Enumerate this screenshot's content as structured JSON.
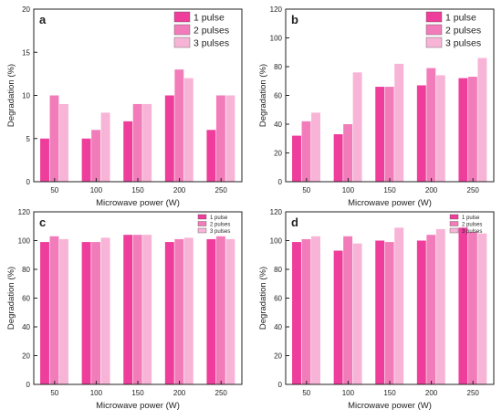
{
  "colors": {
    "pulse1": "#ee3d9b",
    "pulse2": "#f27cba",
    "pulse3": "#f7b4d6",
    "axis": "#222222"
  },
  "chart_data": [
    {
      "type": "bar",
      "panel_label": "a",
      "xlabel": "Microwave power (W)",
      "ylabel": "Degradation (%)",
      "ylim": [
        0,
        20
      ],
      "yticks": [
        0,
        5,
        10,
        15,
        20
      ],
      "categories": [
        "50",
        "100",
        "150",
        "200",
        "250"
      ],
      "legend_position": "top-right",
      "series": [
        {
          "name": "1 pulse",
          "values": [
            5,
            5,
            7,
            10,
            6
          ]
        },
        {
          "name": "2 pulses",
          "values": [
            10,
            6,
            9,
            13,
            10
          ]
        },
        {
          "name": "3 pulses",
          "values": [
            9,
            8,
            9,
            12,
            10
          ]
        }
      ]
    },
    {
      "type": "bar",
      "panel_label": "b",
      "xlabel": "Microwave power (W)",
      "ylabel": "Degradation (%)",
      "ylim": [
        0,
        120
      ],
      "yticks": [
        0,
        20,
        40,
        60,
        80,
        100,
        120
      ],
      "categories": [
        "50",
        "100",
        "150",
        "200",
        "250"
      ],
      "legend_position": "top-right",
      "series": [
        {
          "name": "1 pulse",
          "values": [
            32,
            33,
            66,
            67,
            72
          ]
        },
        {
          "name": "2 pulses",
          "values": [
            42,
            40,
            66,
            79,
            73
          ]
        },
        {
          "name": "3 pulses",
          "values": [
            48,
            76,
            82,
            74,
            86
          ]
        }
      ]
    },
    {
      "type": "bar",
      "panel_label": "c",
      "xlabel": "Microwave power (W)",
      "ylabel": "Degradation (%)",
      "ylim": [
        0,
        120
      ],
      "yticks": [
        0,
        20,
        40,
        60,
        80,
        100,
        120
      ],
      "categories": [
        "50",
        "100",
        "150",
        "200",
        "250"
      ],
      "legend_position": "top-right",
      "series": [
        {
          "name": "1 pulse",
          "values": [
            99,
            99,
            104,
            99,
            101
          ]
        },
        {
          "name": "2 pulses",
          "values": [
            103,
            99,
            104,
            101,
            103
          ]
        },
        {
          "name": "3 pulses",
          "values": [
            101,
            102,
            104,
            102,
            101
          ]
        }
      ]
    },
    {
      "type": "bar",
      "panel_label": "d",
      "xlabel": "Microwave power (W)",
      "ylabel": "Degradation (%)",
      "ylim": [
        0,
        120
      ],
      "yticks": [
        0,
        20,
        40,
        60,
        80,
        100,
        120
      ],
      "categories": [
        "50",
        "100",
        "150",
        "200",
        "250"
      ],
      "legend_position": "top-right",
      "series": [
        {
          "name": "1 pulse",
          "values": [
            99,
            93,
            100,
            100,
            109
          ]
        },
        {
          "name": "2 pulses",
          "values": [
            101,
            103,
            99,
            104,
            106
          ]
        },
        {
          "name": "3 pulses",
          "values": [
            103,
            98,
            109,
            108,
            105
          ]
        }
      ]
    }
  ]
}
